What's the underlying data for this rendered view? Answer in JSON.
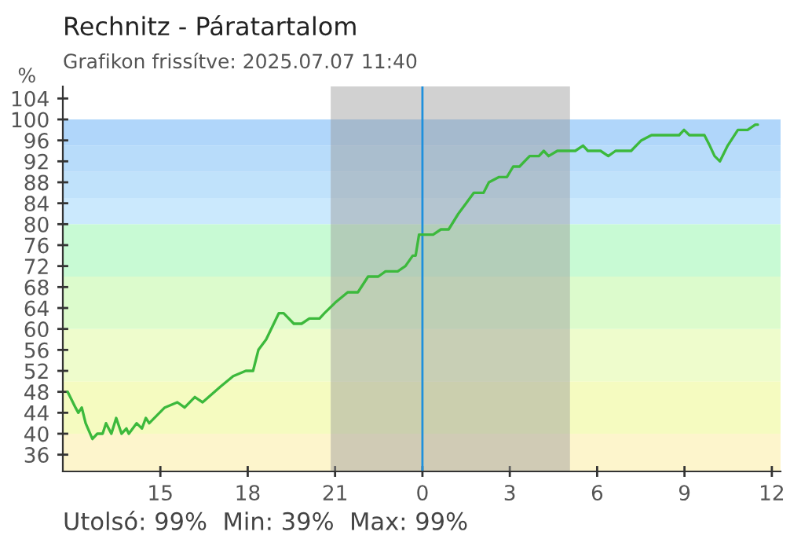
{
  "chart_data": {
    "type": "line",
    "title": "Rechnitz - Páratartalom",
    "subtitle": "Grafikon frissítve: 2025.07.07 11:40",
    "ylabel": "%",
    "annotations": [
      "Utolsó: 99%  Min: 39%  Max: 99%"
    ],
    "series": [
      {
        "color": "#3cb93c",
        "x": [
          "2025-07-06T11:49",
          "2025-07-06T12:05",
          "2025-07-06T12:11",
          "2025-07-06T12:18",
          "2025-07-06T12:26",
          "2025-07-06T12:40",
          "2025-07-06T12:50",
          "2025-07-06T13:01",
          "2025-07-06T13:08",
          "2025-07-06T13:19",
          "2025-07-06T13:29",
          "2025-07-06T13:40",
          "2025-07-06T13:50",
          "2025-07-06T13:55",
          "2025-07-06T14:11",
          "2025-07-06T14:22",
          "2025-07-06T14:30",
          "2025-07-06T14:37",
          "2025-07-06T15:09",
          "2025-07-06T15:35",
          "2025-07-06T15:50",
          "2025-07-06T16:11",
          "2025-07-06T16:27",
          "2025-07-06T17:04",
          "2025-07-06T17:30",
          "2025-07-06T17:56",
          "2025-07-06T18:11",
          "2025-07-06T18:22",
          "2025-07-06T18:38",
          "2025-07-06T19:04",
          "2025-07-06T19:14",
          "2025-07-06T19:35",
          "2025-07-06T19:51",
          "2025-07-06T20:07",
          "2025-07-06T20:28",
          "2025-07-06T20:38",
          "2025-07-06T21:00",
          "2025-07-06T21:26",
          "2025-07-06T21:47",
          "2025-07-06T22:08",
          "2025-07-06T22:29",
          "2025-07-06T22:44",
          "2025-07-06T23:09",
          "2025-07-06T23:25",
          "2025-07-06T23:40",
          "2025-07-06T23:46",
          "2025-07-06T23:53",
          "2025-07-07T00:22",
          "2025-07-07T00:38",
          "2025-07-07T00:54",
          "2025-07-07T01:14",
          "2025-07-07T01:30",
          "2025-07-07T01:46",
          "2025-07-07T02:06",
          "2025-07-07T02:17",
          "2025-07-07T02:38",
          "2025-07-07T02:54",
          "2025-07-07T03:07",
          "2025-07-07T03:20",
          "2025-07-07T03:41",
          "2025-07-07T04:00",
          "2025-07-07T04:10",
          "2025-07-07T04:20",
          "2025-07-07T04:38",
          "2025-07-07T05:15",
          "2025-07-07T05:31",
          "2025-07-07T05:41",
          "2025-07-07T06:07",
          "2025-07-07T06:23",
          "2025-07-07T06:38",
          "2025-07-07T07:10",
          "2025-07-07T07:31",
          "2025-07-07T07:52",
          "2025-07-07T08:49",
          "2025-07-07T08:59",
          "2025-07-07T09:10",
          "2025-07-07T09:41",
          "2025-07-07T09:52",
          "2025-07-07T10:02",
          "2025-07-07T10:13",
          "2025-07-07T10:29",
          "2025-07-07T10:50",
          "2025-07-07T11:10",
          "2025-07-07T11:26",
          "2025-07-07T11:31"
        ],
        "values": [
          48,
          45,
          44,
          45,
          42,
          39,
          40,
          40,
          42,
          40,
          43,
          40,
          41,
          40,
          42,
          41,
          43,
          42,
          45,
          46,
          45,
          47,
          46,
          49,
          51,
          52,
          52,
          56,
          58,
          63,
          63,
          61,
          61,
          62,
          62,
          63,
          65,
          67,
          67,
          70,
          70,
          71,
          71,
          72,
          74,
          74,
          78,
          78,
          79,
          79,
          82,
          84,
          86,
          86,
          88,
          89,
          89,
          91,
          91,
          93,
          93,
          94,
          93,
          94,
          94,
          95,
          94,
          94,
          93,
          94,
          94,
          96,
          97,
          97,
          98,
          97,
          97,
          95,
          93,
          92,
          95,
          98,
          98,
          99,
          99
        ]
      }
    ],
    "xlim": [
      "2025-07-06T11:39",
      "2025-07-07T12:18"
    ],
    "xticks": [
      {
        "value": "2025-07-06T15:00",
        "label": "15"
      },
      {
        "value": "2025-07-06T18:00",
        "label": "18"
      },
      {
        "value": "2025-07-06T21:00",
        "label": "21"
      },
      {
        "value": "2025-07-07T00:00",
        "label": "0"
      },
      {
        "value": "2025-07-07T03:00",
        "label": "3"
      },
      {
        "value": "2025-07-07T06:00",
        "label": "6"
      },
      {
        "value": "2025-07-07T09:00",
        "label": "9"
      },
      {
        "value": "2025-07-07T12:00",
        "label": "12"
      }
    ],
    "ylim": [
      32.8,
      106.3
    ],
    "yticks": [
      36,
      40,
      44,
      48,
      52,
      56,
      60,
      64,
      68,
      72,
      76,
      80,
      84,
      88,
      92,
      96,
      100,
      104
    ],
    "bands": [
      {
        "axis": "y",
        "from": 32.8,
        "to": 40,
        "color": "#fdf5cc"
      },
      {
        "axis": "y",
        "from": 40,
        "to": 50,
        "color": "#f5fbc0"
      },
      {
        "axis": "y",
        "from": 50,
        "to": 60,
        "color": "#eefccc"
      },
      {
        "axis": "y",
        "from": 60,
        "to": 70,
        "color": "#dcfbcc"
      },
      {
        "axis": "y",
        "from": 70,
        "to": 80,
        "color": "#c8fad4"
      },
      {
        "axis": "y",
        "from": 80,
        "to": 85,
        "color": "#cbe9fd"
      },
      {
        "axis": "y",
        "from": 85,
        "to": 90,
        "color": "#c0e2fb"
      },
      {
        "axis": "y",
        "from": 90,
        "to": 95,
        "color": "#b8dcfa"
      },
      {
        "axis": "y",
        "from": 95,
        "to": 100,
        "color": "#b0d6fa"
      },
      {
        "axis": "x",
        "from": "2025-07-06T20:51",
        "to": "2025-07-07T05:04",
        "color": "#999999"
      }
    ],
    "ref_lines": [
      {
        "axis": "x",
        "value": "2025-07-07T00:00",
        "color": "#1e90dd"
      }
    ],
    "grid": false,
    "legend": false
  }
}
